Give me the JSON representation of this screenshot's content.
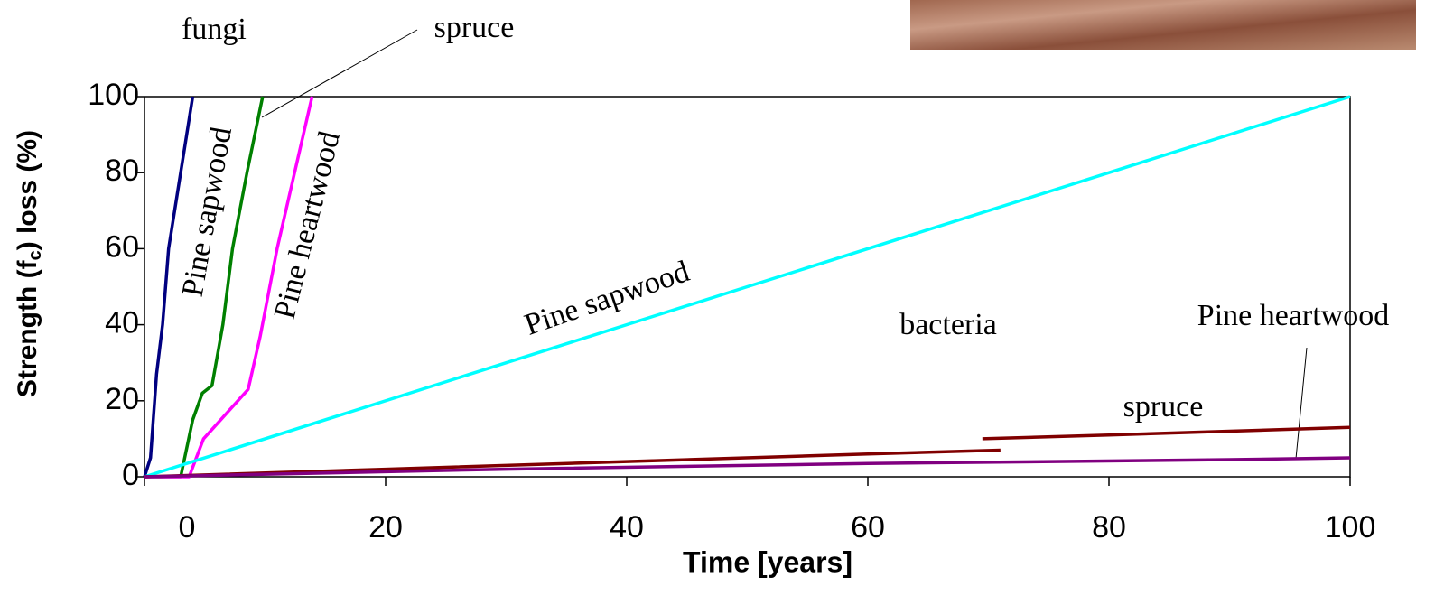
{
  "chart_data": {
    "type": "line",
    "x_label": "Time [years]",
    "y_label": [
      "Strength  (f",
      "c",
      ")  loss  (%)"
    ],
    "xlim": [
      0,
      100
    ],
    "xticks": [
      0,
      20,
      40,
      60,
      80,
      100
    ],
    "ylim": [
      0,
      100
    ],
    "yticks": [
      0,
      20,
      40,
      60,
      80,
      100
    ],
    "series": [
      {
        "name": "Pine sapwood",
        "color": "#000080",
        "x": [
          0,
          0.5,
          1,
          1.5,
          2,
          3,
          4
        ],
        "values": [
          0,
          5,
          27,
          40,
          60,
          80,
          100
        ]
      },
      {
        "name": "spruce",
        "color": "#008000",
        "x": [
          0,
          3,
          4,
          4.8,
          5.6,
          6.5,
          7.3,
          8.5,
          9.8
        ],
        "values": [
          0,
          0,
          15,
          22,
          24,
          40,
          60,
          80,
          100
        ]
      },
      {
        "name": "Pine heartwood",
        "color": "#ff00ff",
        "x": [
          0,
          3.7,
          4.9,
          8.6,
          9.6,
          11,
          13.9
        ],
        "values": [
          0,
          0,
          10,
          23,
          37,
          60,
          100
        ]
      },
      {
        "name": "Pine sapwood",
        "color": "#00ffff",
        "x": [
          0,
          25,
          50,
          75,
          100
        ],
        "values": [
          0,
          25,
          50,
          75,
          100
        ]
      },
      {
        "name": "spruce",
        "color": "#800000",
        "x": [
          0,
          20,
          40,
          60,
          71,
          70,
          69.5,
          80,
          90,
          100
        ],
        "values": [
          0,
          2,
          4,
          6,
          7,
          null,
          10,
          11,
          12,
          13
        ]
      },
      {
        "name": "Pine heartwood",
        "color": "#800080",
        "x": [
          0,
          30,
          60,
          90,
          100
        ],
        "values": [
          0,
          2,
          3.5,
          4.5,
          5
        ]
      }
    ],
    "annotations": [
      "fungi",
      "spruce",
      "Pine sapwood",
      "Pine heartwood",
      "Pine sapwood",
      "bacteria",
      "Pine heartwood",
      "spruce"
    ]
  }
}
